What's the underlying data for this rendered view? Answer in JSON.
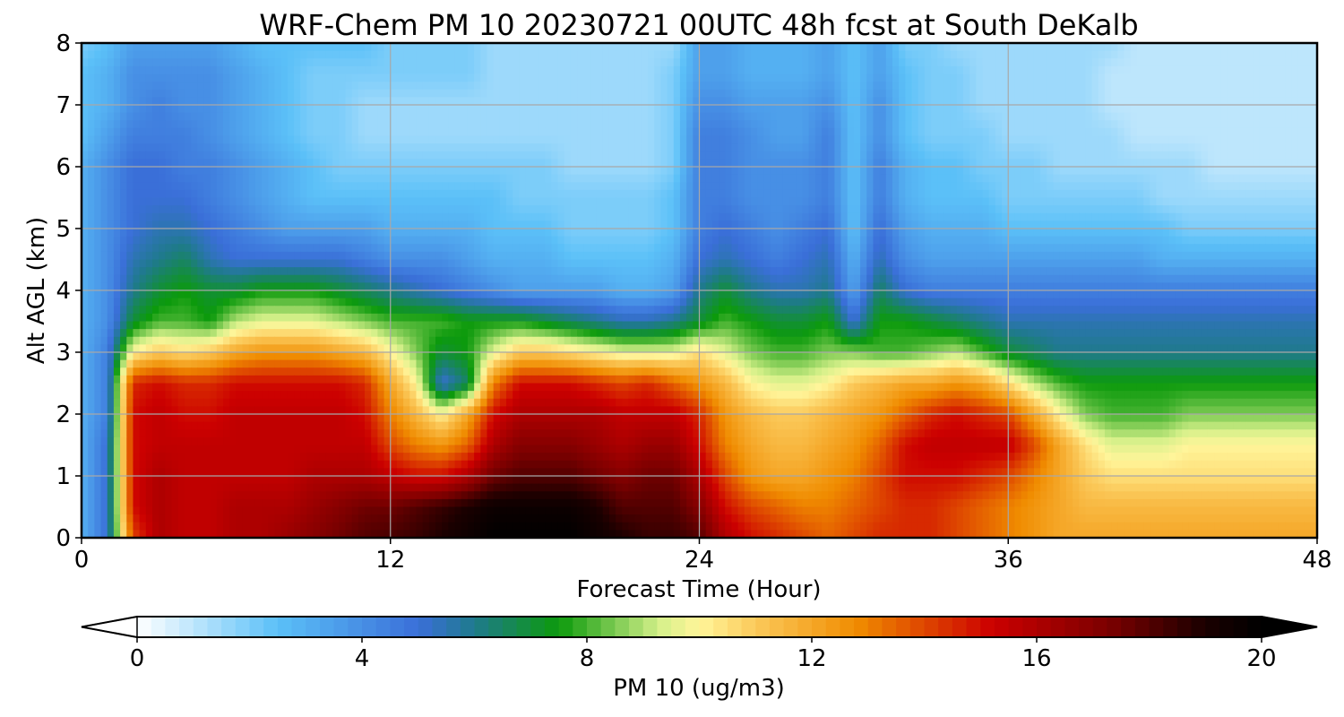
{
  "chart_data": {
    "type": "heatmap",
    "title": "WRF-Chem PM 10  20230721 00UTC 48h fcst at South DeKalb",
    "xlabel": "Forecast Time (Hour)",
    "ylabel": "Alt AGL (km)",
    "xlim": [
      0,
      48
    ],
    "ylim": [
      0,
      8
    ],
    "xticks": [
      0,
      12,
      24,
      36,
      48
    ],
    "yticks": [
      0,
      1,
      2,
      3,
      4,
      5,
      6,
      7,
      8
    ],
    "grid": true,
    "colorbar": {
      "label": "PM 10  (ug/m3)",
      "range": [
        0,
        20
      ],
      "ticks": [
        0,
        4,
        8,
        12,
        16,
        20
      ],
      "extend": "both",
      "colormap_stops": [
        {
          "value": 0,
          "color": "#ffffff"
        },
        {
          "value": 2.5,
          "color": "#5bc0f8"
        },
        {
          "value": 5,
          "color": "#3a6fd8"
        },
        {
          "value": 6,
          "color": "#1f7a8c"
        },
        {
          "value": 7.5,
          "color": "#0c9a0c"
        },
        {
          "value": 9.3,
          "color": "#d6f08a"
        },
        {
          "value": 10,
          "color": "#fff59a"
        },
        {
          "value": 11,
          "color": "#fbc95a"
        },
        {
          "value": 12.8,
          "color": "#f08c00"
        },
        {
          "value": 15.2,
          "color": "#cc0000"
        },
        {
          "value": 17.3,
          "color": "#7a0000"
        },
        {
          "value": 19,
          "color": "#1a0000"
        },
        {
          "value": 20,
          "color": "#000000"
        }
      ]
    },
    "grid_x_hours": [
      0,
      1,
      2,
      3,
      4,
      5,
      6,
      7,
      8,
      9,
      10,
      11,
      12,
      13,
      14,
      15,
      16,
      17,
      18,
      19,
      20,
      21,
      22,
      23,
      24,
      25,
      26,
      27,
      28,
      29,
      30,
      31,
      32,
      33,
      34,
      35,
      36,
      37,
      38,
      39,
      40,
      41,
      42,
      43,
      44,
      45,
      46,
      47,
      48
    ],
    "grid_y_km": [
      0,
      0.5,
      1,
      1.5,
      2,
      2.5,
      3,
      3.5,
      4,
      4.5,
      5,
      5.5,
      6,
      6.5,
      7,
      7.5,
      8
    ],
    "values": [
      [
        3,
        5,
        14,
        16,
        15.5,
        15.5,
        16,
        16,
        16.5,
        17,
        17.5,
        18,
        18.2,
        18.5,
        19,
        19.5,
        20,
        20,
        20,
        20,
        19.5,
        19,
        18.5,
        18.5,
        18,
        16,
        15,
        14.5,
        14,
        13.5,
        14,
        14.5,
        14.5,
        14.5,
        14,
        13.5,
        13,
        12.5,
        12,
        12,
        12,
        12,
        12,
        12,
        12,
        12,
        12,
        12,
        12
      ],
      [
        3,
        5,
        15,
        16,
        15.5,
        15.5,
        16,
        16,
        16,
        16.5,
        17,
        17.5,
        17.5,
        18,
        18.5,
        19,
        19.5,
        19.5,
        19.5,
        19.5,
        19,
        18,
        18,
        18,
        17,
        15,
        14,
        13.5,
        13,
        13,
        13.5,
        14,
        14.5,
        14.5,
        14,
        13.5,
        13,
        12.5,
        12,
        11.5,
        11.5,
        11.5,
        11.5,
        11.5,
        11.5,
        11.5,
        11.5,
        11.5,
        11.5
      ],
      [
        3,
        5,
        15,
        16,
        15.5,
        15.5,
        15.5,
        15.5,
        15.5,
        16,
        16,
        16,
        15.5,
        15,
        15,
        16,
        17.5,
        18,
        18,
        18,
        17.5,
        17,
        17.5,
        17.5,
        16,
        14,
        12.5,
        12,
        12,
        12.5,
        13,
        14,
        15,
        15,
        15,
        14.5,
        14,
        13,
        12,
        11,
        10.5,
        10.5,
        10.5,
        10.5,
        10.5,
        10.5,
        10.5,
        10.5,
        10.5
      ],
      [
        3,
        5,
        15,
        15.5,
        15.5,
        15.5,
        15.5,
        15.5,
        15.5,
        15.5,
        15.5,
        15.5,
        14,
        13,
        12.5,
        13.5,
        16,
        17,
        17,
        17,
        16.5,
        16,
        16.5,
        16.5,
        15,
        13,
        12,
        11.5,
        11.5,
        12,
        12.5,
        13.5,
        15,
        15.5,
        15.5,
        15.5,
        15.5,
        14,
        12,
        10.5,
        9.5,
        9.5,
        9.5,
        10,
        10,
        10,
        10,
        10,
        10
      ]
    ],
    "note_rows": "rows correspond to grid_y_km[0..3]; upper rows follow the same pattern",
    "upper_values": [
      [
        3,
        4.5,
        15,
        15.5,
        15,
        15,
        15.5,
        15.5,
        15.5,
        15.5,
        15.5,
        15,
        13,
        11.5,
        10,
        12,
        15,
        16,
        16,
        16,
        16,
        15.5,
        15.5,
        15.5,
        14.5,
        12.5,
        11.5,
        11,
        11,
        11.5,
        12,
        12.5,
        13.5,
        14.5,
        15,
        14.5,
        14,
        12,
        10,
        8.5,
        8,
        8,
        8,
        8.5,
        8.5,
        8.5,
        8.5,
        8.5,
        8.5
      ],
      [
        3,
        4.5,
        14.5,
        15,
        14.5,
        14.5,
        15,
        15,
        15,
        15,
        15,
        14.5,
        12,
        10,
        5,
        6.5,
        13,
        15,
        15,
        15,
        14.5,
        14,
        14.5,
        13.5,
        12.5,
        11.5,
        10,
        9.5,
        9.5,
        10,
        11,
        11.5,
        12,
        12,
        12.5,
        12,
        10.5,
        9,
        8,
        7.5,
        7.5,
        7.5,
        7.5,
        7.5,
        7.5,
        7.5,
        7.5,
        7.5,
        7.5
      ],
      [
        3,
        4.5,
        10,
        11,
        10.5,
        11,
        12,
        12.5,
        12.5,
        12.5,
        12,
        11.5,
        10,
        8.5,
        7,
        7.5,
        9.5,
        11,
        11,
        10.5,
        10,
        9.5,
        9.5,
        9.5,
        10.5,
        9.5,
        8.5,
        8,
        8,
        8.5,
        8.5,
        8,
        8,
        8.5,
        9,
        8,
        7,
        6.5,
        6,
        6,
        6,
        6,
        6,
        6,
        6,
        6,
        6,
        6,
        6
      ],
      [
        3,
        4,
        7,
        8,
        8,
        7.5,
        9,
        9.5,
        9.5,
        9.5,
        9,
        8.5,
        8,
        8,
        8,
        7.5,
        7.5,
        7.5,
        7,
        6.5,
        6,
        5.5,
        5.5,
        6,
        7,
        8,
        7.5,
        7,
        7,
        7.5,
        5,
        7.5,
        7.5,
        7,
        6.5,
        6,
        5.5,
        5.5,
        5.5,
        5.5,
        5.5,
        5.5,
        5.5,
        5.5,
        5.5,
        5.5,
        5.5,
        5.5,
        5.5
      ],
      [
        3,
        4,
        6,
        7,
        7.5,
        7,
        7,
        7.5,
        7.5,
        7.5,
        7,
        6.5,
        6,
        5.5,
        5,
        4.5,
        4,
        3.5,
        3.5,
        3.5,
        3.5,
        3,
        3,
        3.5,
        6,
        7,
        6,
        5.5,
        5.5,
        6,
        3.5,
        6.5,
        5,
        4.5,
        4.5,
        4.5,
        4.5,
        4.5,
        4.5,
        4.5,
        4.5,
        4.5,
        4.5,
        4.5,
        4.5,
        4.5,
        4.5,
        4.5,
        4.5
      ],
      [
        3,
        4,
        5.5,
        6,
        6.5,
        5.5,
        5,
        5,
        5,
        5,
        5,
        4.5,
        4,
        4,
        4,
        3.5,
        3,
        3,
        3,
        2.5,
        2.5,
        2.5,
        2.5,
        3,
        5,
        5.5,
        5,
        4.5,
        5,
        5.5,
        3,
        5.5,
        4,
        3.5,
        3.5,
        3.5,
        3.5,
        3.5,
        3.5,
        3.5,
        3.5,
        3.5,
        3,
        3,
        3,
        3,
        3,
        3,
        3
      ],
      [
        3,
        4,
        5,
        5.5,
        5.5,
        5,
        4.5,
        4,
        3.5,
        3.5,
        3.5,
        3.5,
        3,
        3,
        3,
        3,
        2.5,
        2.5,
        2.5,
        2,
        2,
        2,
        2,
        2.5,
        4.5,
        5,
        4.5,
        4,
        4.5,
        5,
        2.5,
        5,
        3.5,
        3,
        3,
        3,
        2.5,
        2.5,
        2.5,
        2.5,
        2.5,
        2.5,
        2.5,
        2,
        2,
        2,
        2,
        2,
        2
      ],
      [
        3,
        4,
        5,
        5,
        5,
        4.5,
        4,
        3.5,
        3,
        2.5,
        2.5,
        2.5,
        2.5,
        2.5,
        2.5,
        2.5,
        2.5,
        2,
        2,
        2,
        2,
        2,
        2,
        2.5,
        4.5,
        4.5,
        4,
        4,
        4,
        4.5,
        2.5,
        4.5,
        3,
        2.5,
        2.5,
        2.5,
        2,
        2,
        2,
        2,
        2,
        2,
        1.5,
        1.5,
        1.5,
        1.5,
        1.5,
        1.5,
        1.5
      ],
      [
        3,
        4,
        5,
        5,
        4.5,
        4.5,
        4,
        3.5,
        3,
        2.5,
        2,
        2,
        2,
        2,
        2,
        2,
        2,
        2,
        2,
        1.5,
        1.5,
        1.5,
        1.5,
        2,
        4.5,
        4.5,
        4,
        4,
        4,
        4.5,
        2.5,
        4.5,
        3,
        2.5,
        2.5,
        2,
        2,
        2,
        1.5,
        1.5,
        1.5,
        1.5,
        1.5,
        1.5,
        1,
        1,
        1,
        1,
        1
      ],
      [
        2.5,
        3.5,
        4.5,
        4.5,
        4.5,
        4,
        3.5,
        3,
        2.5,
        2,
        2,
        1.5,
        1.5,
        1.5,
        1.5,
        1.5,
        1.5,
        1.5,
        1.5,
        1.5,
        1.5,
        1.5,
        1.5,
        2,
        4.5,
        4.5,
        4,
        3.5,
        3.5,
        4.5,
        2.5,
        4,
        2.5,
        2,
        2,
        2,
        1.5,
        1.5,
        1.5,
        1.5,
        1.5,
        1,
        1,
        1,
        1,
        1,
        1,
        1,
        1
      ],
      [
        2.5,
        3,
        4,
        4.5,
        4,
        4,
        3.5,
        3,
        2.5,
        2,
        2,
        1.5,
        1.5,
        1.5,
        1.5,
        1.5,
        1.5,
        1.5,
        1.5,
        1.5,
        1.5,
        1.5,
        1.5,
        2,
        4,
        4,
        3.5,
        3.5,
        3.5,
        4,
        2.5,
        4,
        2.5,
        2,
        2,
        1.5,
        1.5,
        1.5,
        1.5,
        1.5,
        1,
        1,
        1,
        1,
        1,
        1,
        1,
        1,
        1
      ],
      [
        2.5,
        3,
        4,
        4,
        4,
        4,
        3.5,
        3,
        2.5,
        2,
        2,
        2,
        2,
        2,
        2,
        2,
        1.5,
        1.5,
        1.5,
        1.5,
        1.5,
        1.5,
        1.5,
        2,
        3.5,
        3.5,
        3,
        3,
        3,
        3.5,
        2.5,
        3.5,
        2.5,
        2,
        2,
        1.5,
        1.5,
        1.5,
        1.5,
        1.5,
        1,
        1,
        1,
        1,
        1,
        1,
        1,
        1,
        1
      ],
      [
        2,
        2.5,
        3.5,
        3.5,
        3.5,
        3.5,
        3,
        2.5,
        2.5,
        2.5,
        2.5,
        2.5,
        2,
        2,
        2,
        2,
        1.5,
        1.5,
        1.5,
        1.5,
        1.5,
        1.5,
        1.5,
        1.5,
        3.5,
        3.5,
        3,
        3,
        3,
        3.5,
        2.5,
        3.5,
        2,
        2,
        1.5,
        1.5,
        1.5,
        1.5,
        1.5,
        1.5,
        1.5,
        1,
        1,
        1,
        1,
        1,
        1,
        1,
        1
      ]
    ]
  }
}
